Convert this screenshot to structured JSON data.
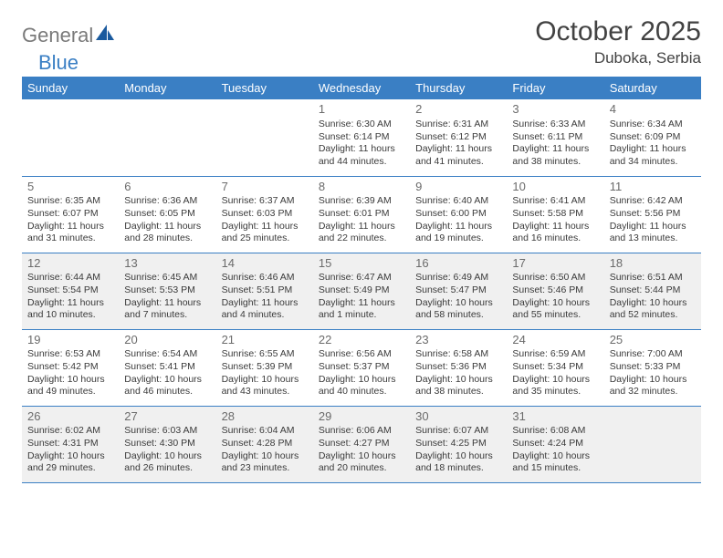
{
  "logo": {
    "part1": "General",
    "part2": "Blue"
  },
  "title": "October 2025",
  "subtitle": "Duboka, Serbia",
  "day_headers": [
    "Sunday",
    "Monday",
    "Tuesday",
    "Wednesday",
    "Thursday",
    "Friday",
    "Saturday"
  ],
  "colors": {
    "header_bg": "#3a7fc4",
    "header_fg": "#ffffff",
    "row_even_bg": "#f0f0f0",
    "row_odd_bg": "#ffffff",
    "cell_border": "#3a7fc4",
    "text": "#3a3a3a",
    "daynum": "#6b6b6b",
    "logo_gray": "#7a7a7a",
    "logo_blue": "#3a7fc4"
  },
  "weeks": [
    [
      null,
      null,
      null,
      {
        "n": "1",
        "sr": "6:30 AM",
        "ss": "6:14 PM",
        "dl": "11 hours and 44 minutes."
      },
      {
        "n": "2",
        "sr": "6:31 AM",
        "ss": "6:12 PM",
        "dl": "11 hours and 41 minutes."
      },
      {
        "n": "3",
        "sr": "6:33 AM",
        "ss": "6:11 PM",
        "dl": "11 hours and 38 minutes."
      },
      {
        "n": "4",
        "sr": "6:34 AM",
        "ss": "6:09 PM",
        "dl": "11 hours and 34 minutes."
      }
    ],
    [
      {
        "n": "5",
        "sr": "6:35 AM",
        "ss": "6:07 PM",
        "dl": "11 hours and 31 minutes."
      },
      {
        "n": "6",
        "sr": "6:36 AM",
        "ss": "6:05 PM",
        "dl": "11 hours and 28 minutes."
      },
      {
        "n": "7",
        "sr": "6:37 AM",
        "ss": "6:03 PM",
        "dl": "11 hours and 25 minutes."
      },
      {
        "n": "8",
        "sr": "6:39 AM",
        "ss": "6:01 PM",
        "dl": "11 hours and 22 minutes."
      },
      {
        "n": "9",
        "sr": "6:40 AM",
        "ss": "6:00 PM",
        "dl": "11 hours and 19 minutes."
      },
      {
        "n": "10",
        "sr": "6:41 AM",
        "ss": "5:58 PM",
        "dl": "11 hours and 16 minutes."
      },
      {
        "n": "11",
        "sr": "6:42 AM",
        "ss": "5:56 PM",
        "dl": "11 hours and 13 minutes."
      }
    ],
    [
      {
        "n": "12",
        "sr": "6:44 AM",
        "ss": "5:54 PM",
        "dl": "11 hours and 10 minutes."
      },
      {
        "n": "13",
        "sr": "6:45 AM",
        "ss": "5:53 PM",
        "dl": "11 hours and 7 minutes."
      },
      {
        "n": "14",
        "sr": "6:46 AM",
        "ss": "5:51 PM",
        "dl": "11 hours and 4 minutes."
      },
      {
        "n": "15",
        "sr": "6:47 AM",
        "ss": "5:49 PM",
        "dl": "11 hours and 1 minute."
      },
      {
        "n": "16",
        "sr": "6:49 AM",
        "ss": "5:47 PM",
        "dl": "10 hours and 58 minutes."
      },
      {
        "n": "17",
        "sr": "6:50 AM",
        "ss": "5:46 PM",
        "dl": "10 hours and 55 minutes."
      },
      {
        "n": "18",
        "sr": "6:51 AM",
        "ss": "5:44 PM",
        "dl": "10 hours and 52 minutes."
      }
    ],
    [
      {
        "n": "19",
        "sr": "6:53 AM",
        "ss": "5:42 PM",
        "dl": "10 hours and 49 minutes."
      },
      {
        "n": "20",
        "sr": "6:54 AM",
        "ss": "5:41 PM",
        "dl": "10 hours and 46 minutes."
      },
      {
        "n": "21",
        "sr": "6:55 AM",
        "ss": "5:39 PM",
        "dl": "10 hours and 43 minutes."
      },
      {
        "n": "22",
        "sr": "6:56 AM",
        "ss": "5:37 PM",
        "dl": "10 hours and 40 minutes."
      },
      {
        "n": "23",
        "sr": "6:58 AM",
        "ss": "5:36 PM",
        "dl": "10 hours and 38 minutes."
      },
      {
        "n": "24",
        "sr": "6:59 AM",
        "ss": "5:34 PM",
        "dl": "10 hours and 35 minutes."
      },
      {
        "n": "25",
        "sr": "7:00 AM",
        "ss": "5:33 PM",
        "dl": "10 hours and 32 minutes."
      }
    ],
    [
      {
        "n": "26",
        "sr": "6:02 AM",
        "ss": "4:31 PM",
        "dl": "10 hours and 29 minutes."
      },
      {
        "n": "27",
        "sr": "6:03 AM",
        "ss": "4:30 PM",
        "dl": "10 hours and 26 minutes."
      },
      {
        "n": "28",
        "sr": "6:04 AM",
        "ss": "4:28 PM",
        "dl": "10 hours and 23 minutes."
      },
      {
        "n": "29",
        "sr": "6:06 AM",
        "ss": "4:27 PM",
        "dl": "10 hours and 20 minutes."
      },
      {
        "n": "30",
        "sr": "6:07 AM",
        "ss": "4:25 PM",
        "dl": "10 hours and 18 minutes."
      },
      {
        "n": "31",
        "sr": "6:08 AM",
        "ss": "4:24 PM",
        "dl": "10 hours and 15 minutes."
      },
      null
    ]
  ],
  "labels": {
    "sunrise": "Sunrise: ",
    "sunset": "Sunset: ",
    "daylight": "Daylight: "
  }
}
